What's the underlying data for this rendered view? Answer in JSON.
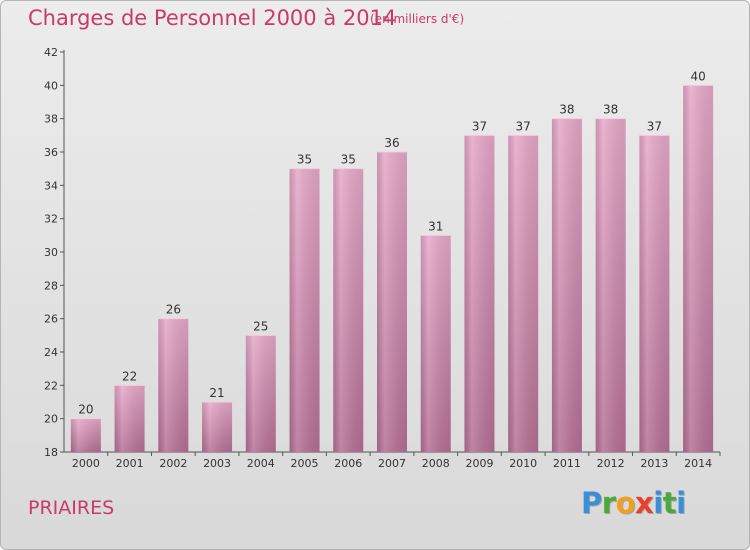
{
  "header": {
    "title": "Charges de Personnel 2000 à 2014",
    "subtitle": "(en milliers d'€)"
  },
  "footer": {
    "commune": "PRIAIRES",
    "brand_letters": [
      "P",
      "r",
      "o",
      "x",
      "i",
      "t",
      "i"
    ],
    "brand_colors": [
      "#3a8fd6",
      "#4aa83c",
      "#f0a020",
      "#e8402a",
      "#3a8fd6",
      "#4aa83c",
      "#3a8fd6"
    ]
  },
  "chart_data": {
    "type": "bar",
    "categories": [
      "2000",
      "2001",
      "2002",
      "2003",
      "2004",
      "2005",
      "2006",
      "2007",
      "2008",
      "2009",
      "2010",
      "2011",
      "2012",
      "2013",
      "2014"
    ],
    "values": [
      20,
      22,
      26,
      21,
      25,
      35,
      35,
      36,
      31,
      37,
      37,
      38,
      38,
      37,
      40
    ],
    "ylim": [
      18,
      42
    ],
    "yticks": [
      18,
      20,
      22,
      24,
      26,
      28,
      30,
      32,
      34,
      36,
      38,
      40,
      42
    ],
    "bar_color": "#d48aae",
    "grid": false
  }
}
